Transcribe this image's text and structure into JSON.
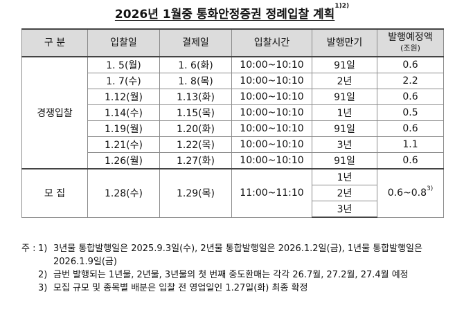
{
  "title": "2026년 1월중 통화안정증권 정례입찰 계획",
  "title_note": "1)2)",
  "table": {
    "headers": {
      "category": "구  분",
      "auction_date": "입찰일",
      "settlement_date": "결제일",
      "auction_time": "입찰시간",
      "maturity": "발행만기",
      "amount": "발행예정액",
      "amount_unit": "(조원)"
    },
    "competitive_label": "경쟁입찰",
    "competitive_rows": [
      {
        "auction_date": "1. 5(월)",
        "settlement_date": "1. 6(화)",
        "time": "10:00~10:10",
        "maturity": "91일",
        "amount": "0.6"
      },
      {
        "auction_date": "1. 7(수)",
        "settlement_date": "1. 8(목)",
        "time": "10:00~10:10",
        "maturity": "2년",
        "amount": "2.2"
      },
      {
        "auction_date": "1.12(월)",
        "settlement_date": "1.13(화)",
        "time": "10:00~10:10",
        "maturity": "91일",
        "amount": "0.6"
      },
      {
        "auction_date": "1.14(수)",
        "settlement_date": "1.15(목)",
        "time": "10:00~10:10",
        "maturity": "1년",
        "amount": "0.5"
      },
      {
        "auction_date": "1.19(월)",
        "settlement_date": "1.20(화)",
        "time": "10:00~10:10",
        "maturity": "91일",
        "amount": "0.6"
      },
      {
        "auction_date": "1.21(수)",
        "settlement_date": "1.22(목)",
        "time": "10:00~10:10",
        "maturity": "3년",
        "amount": "1.1"
      },
      {
        "auction_date": "1.26(월)",
        "settlement_date": "1.27(화)",
        "time": "10:00~10:10",
        "maturity": "91일",
        "amount": "0.6"
      }
    ],
    "offering": {
      "label": "모  집",
      "auction_date": "1.28(수)",
      "settlement_date": "1.29(목)",
      "time": "11:00~11:10",
      "maturities": [
        "1년",
        "2년",
        "3년"
      ],
      "amount": "0.6~0.8",
      "amount_note": "3)"
    }
  },
  "notes": {
    "lead": "주 :",
    "items": [
      {
        "num": "1)",
        "text": "3년물 통합발행일은 2025.9.3일(수), 2년물 통합발행일은 2026.1.2일(금), 1년물 통합발행일은 2026.1.9일(금)"
      },
      {
        "num": "2)",
        "text": "금번 발행되는 1년물, 2년물, 3년물의 첫 번째 중도환매는 각각 26.7월, 27.2월, 27.4월 예정"
      },
      {
        "num": "3)",
        "text": "모집 규모 및 종목별 배분은 입찰 전 영업일인 1.27일(화) 최종 확정"
      }
    ]
  }
}
